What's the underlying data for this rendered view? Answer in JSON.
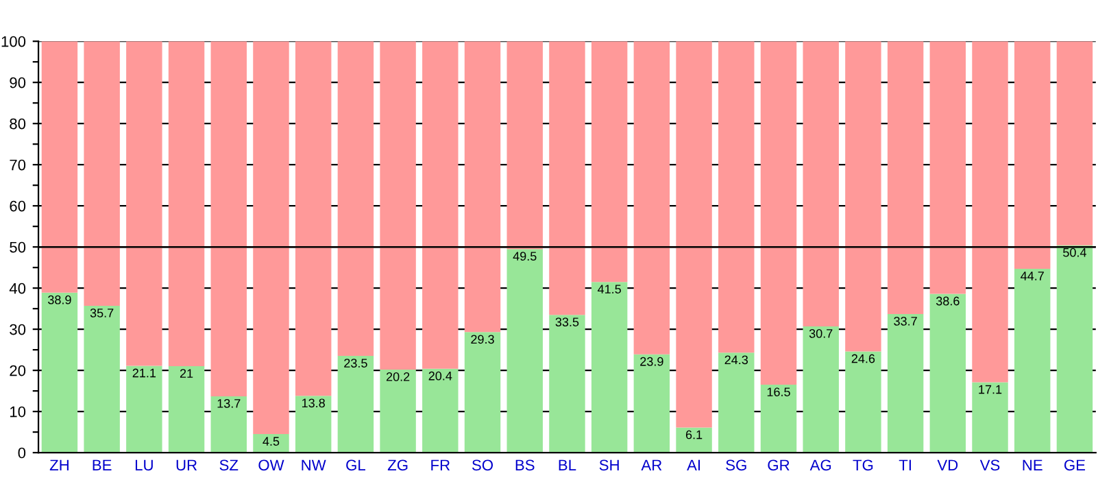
{
  "chart_data": {
    "type": "bar",
    "stacked": true,
    "categories": [
      "ZH",
      "BE",
      "LU",
      "UR",
      "SZ",
      "OW",
      "NW",
      "GL",
      "ZG",
      "FR",
      "SO",
      "BS",
      "BL",
      "SH",
      "AR",
      "AI",
      "SG",
      "GR",
      "AG",
      "TG",
      "TI",
      "VD",
      "VS",
      "NE",
      "GE"
    ],
    "series": [
      {
        "color": "#98e698",
        "values": [
          38.9,
          35.7,
          21.1,
          21,
          13.7,
          4.5,
          13.8,
          23.5,
          20.2,
          20.4,
          29.3,
          49.5,
          33.5,
          41.5,
          23.9,
          6.1,
          24.3,
          16.5,
          30.7,
          24.6,
          33.7,
          38.6,
          17.1,
          44.7,
          50.4
        ],
        "value_labels": [
          "38.9",
          "35.7",
          "21.1",
          "21",
          "13.7",
          "4.5",
          "13.8",
          "23.5",
          "20.2",
          "20.4",
          "29.3",
          "49.5",
          "33.5",
          "41.5",
          "23.9",
          "6.1",
          "24.3",
          "16.5",
          "30.7",
          "24.6",
          "33.7",
          "38.6",
          "17.1",
          "44.7",
          "50.4"
        ]
      },
      {
        "color": "#ff9999",
        "values": [
          61.1,
          64.3,
          78.9,
          79,
          86.3,
          95.5,
          86.2,
          76.5,
          79.8,
          79.6,
          70.7,
          50.5,
          66.5,
          58.5,
          76.1,
          93.9,
          75.7,
          83.5,
          69.3,
          75.4,
          66.3,
          61.4,
          82.9,
          55.3,
          49.6
        ]
      }
    ],
    "ylim": [
      0,
      100
    ],
    "yticks": [
      0,
      {
        "value": 5,
        "label": null
      },
      10,
      {
        "value": 15,
        "label": null
      },
      20,
      {
        "value": 25,
        "label": null
      },
      30,
      {
        "value": 35,
        "label": null
      },
      40,
      {
        "value": 45,
        "label": null
      },
      50,
      {
        "value": 55,
        "label": null
      },
      60,
      {
        "value": 65,
        "label": null
      },
      70,
      {
        "value": 75,
        "label": null
      },
      80,
      {
        "value": 85,
        "label": null
      },
      90,
      {
        "value": 95,
        "label": null
      },
      100
    ],
    "grid": "y",
    "ref_lines": [
      {
        "axis": "y",
        "value": 50,
        "color": "#000000"
      }
    ]
  }
}
